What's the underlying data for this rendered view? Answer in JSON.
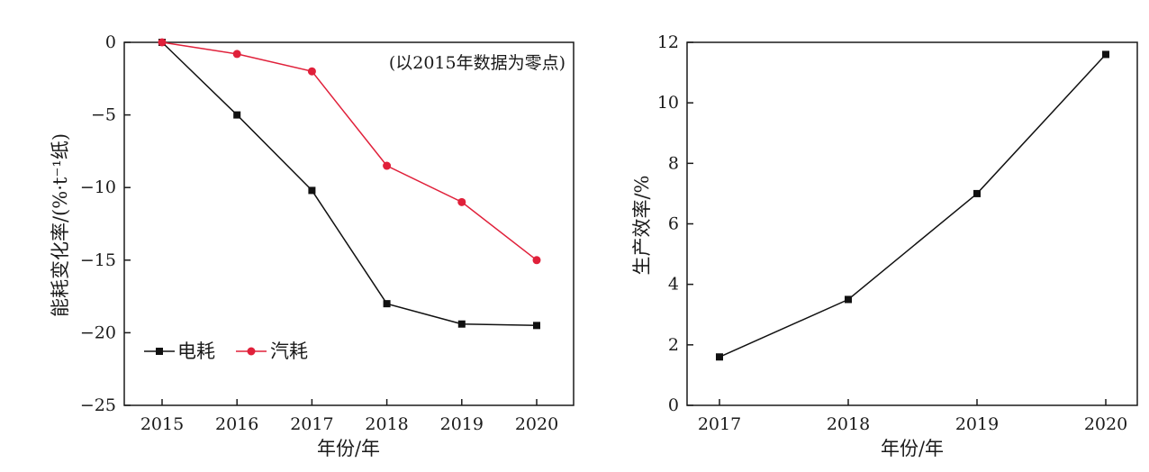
{
  "chart_data": [
    {
      "type": "line",
      "xlabel": "年份/年",
      "ylabel": "能耗变化率/(%·t⁻¹纸)",
      "annotation": "(以2015年数据为零点)",
      "x": [
        2015,
        2016,
        2017,
        2018,
        2019,
        2020
      ],
      "ylim": [
        -25,
        0
      ],
      "yticks": [
        0,
        -5,
        -10,
        -15,
        -20,
        -25
      ],
      "ytick_labels": [
        "0",
        "-5",
        "-10",
        "-15",
        "-20",
        "-25"
      ],
      "xtick_labels": [
        "2015",
        "2016",
        "2017",
        "2018",
        "2019",
        "2020"
      ],
      "grid": false,
      "legend_position": "bottom-left",
      "series": [
        {
          "name": "电耗",
          "values": [
            0,
            -5.0,
            -10.2,
            -18.0,
            -19.4,
            -19.5
          ],
          "color": "#111111",
          "marker": "square"
        },
        {
          "name": "汽耗",
          "values": [
            0,
            -0.8,
            -2.0,
            -8.5,
            -11.0,
            -15.0
          ],
          "color": "#e0203a",
          "marker": "circle"
        }
      ]
    },
    {
      "type": "line",
      "xlabel": "年份/年",
      "ylabel": "生产效率/%",
      "x": [
        2017,
        2018,
        2019,
        2020
      ],
      "ylim": [
        0,
        12
      ],
      "yticks": [
        0,
        2,
        4,
        6,
        8,
        10,
        12
      ],
      "ytick_labels": [
        "0",
        "2",
        "4",
        "6",
        "8",
        "10",
        "12"
      ],
      "xtick_labels": [
        "2017",
        "2018",
        "2019",
        "2020"
      ],
      "grid": false,
      "series": [
        {
          "values": [
            1.6,
            3.5,
            7.0,
            11.6
          ],
          "color": "#111111",
          "marker": "square"
        }
      ]
    }
  ]
}
